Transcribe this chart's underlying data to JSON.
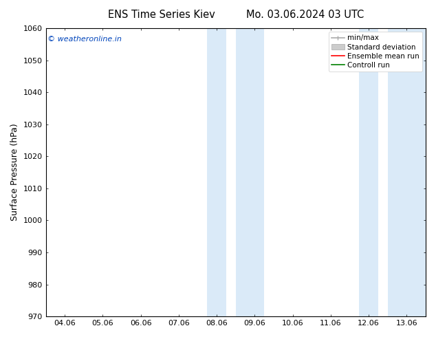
{
  "title_left": "ENS Time Series Kiev",
  "title_right": "Mo. 03.06.2024 03 UTC",
  "ylabel": "Surface Pressure (hPa)",
  "ylim": [
    970,
    1060
  ],
  "yticks": [
    970,
    980,
    990,
    1000,
    1010,
    1020,
    1030,
    1040,
    1050,
    1060
  ],
  "xtick_labels": [
    "04.06",
    "05.06",
    "06.06",
    "07.06",
    "08.06",
    "09.06",
    "10.06",
    "11.06",
    "12.06",
    "13.06"
  ],
  "xtick_positions": [
    0,
    1,
    2,
    3,
    4,
    5,
    6,
    7,
    8,
    9
  ],
  "xlim": [
    -0.5,
    9.5
  ],
  "shaded_regions": [
    {
      "x_start": 3.75,
      "x_end": 4.25,
      "color": "#daeaf8"
    },
    {
      "x_start": 4.5,
      "x_end": 5.25,
      "color": "#daeaf8"
    },
    {
      "x_start": 7.75,
      "x_end": 8.25,
      "color": "#daeaf8"
    },
    {
      "x_start": 8.5,
      "x_end": 9.5,
      "color": "#daeaf8"
    }
  ],
  "watermark_text": "© weatheronline.in",
  "watermark_color": "#0044bb",
  "bg_color": "#ffffff",
  "plot_bg_color": "#ffffff",
  "legend_items": [
    {
      "label": "min/max",
      "color": "#aaaaaa",
      "lw": 1.2,
      "type": "errbar"
    },
    {
      "label": "Standard deviation",
      "color": "#cccccc",
      "lw": 5,
      "type": "band"
    },
    {
      "label": "Ensemble mean run",
      "color": "#ff0000",
      "lw": 1.2,
      "type": "line"
    },
    {
      "label": "Controll run",
      "color": "#008000",
      "lw": 1.2,
      "type": "line"
    }
  ],
  "title_fontsize": 10.5,
  "tick_fontsize": 8,
  "ylabel_fontsize": 9,
  "legend_fontsize": 7.5
}
